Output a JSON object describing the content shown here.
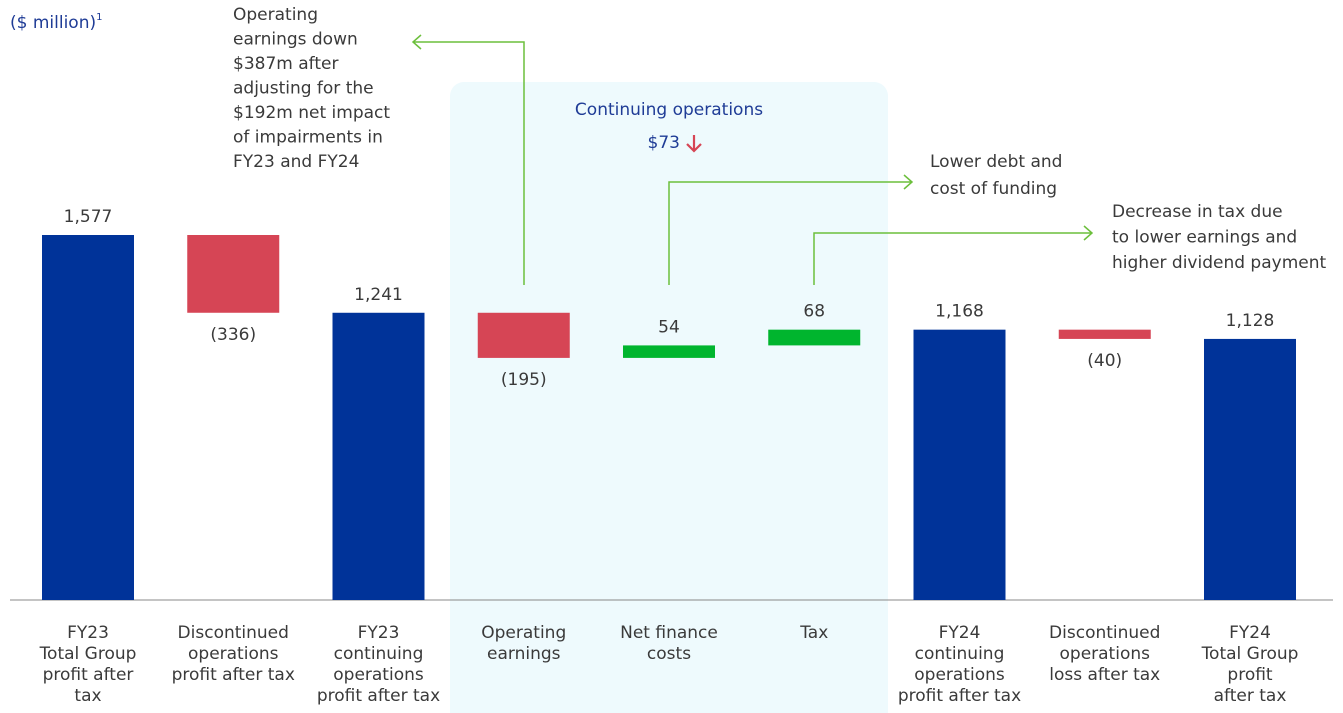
{
  "chart_data": {
    "type": "waterfall",
    "unit_label": "($ million)",
    "unit_footnote": "1",
    "categories": [
      [
        "FY23",
        "Total Group",
        "profit after",
        "tax"
      ],
      [
        "Discontinued",
        "operations",
        "profit after tax"
      ],
      [
        "FY23",
        "continuing",
        "operations",
        "profit after tax"
      ],
      [
        "Operating",
        "earnings"
      ],
      [
        "Net finance",
        "costs"
      ],
      [
        "Tax"
      ],
      [
        "FY24",
        "continuing",
        "operations",
        "profit after tax"
      ],
      [
        "Discontinued",
        "operations",
        "loss after tax"
      ],
      [
        "FY24",
        "Total Group",
        "profit",
        "after tax"
      ]
    ],
    "values": [
      1577,
      -336,
      1241,
      -195,
      54,
      68,
      1168,
      -40,
      1128
    ],
    "value_labels": [
      "1,577",
      "(336)",
      "1,241",
      "(195)",
      "54",
      "68",
      "1,168",
      "(40)",
      "1,128"
    ],
    "measures": [
      "total",
      "relative",
      "total",
      "relative",
      "relative",
      "relative",
      "total",
      "relative",
      "total"
    ],
    "colors": {
      "total": "#003399",
      "decrease": "#d64555",
      "increase": "#00b52e"
    },
    "group_box": {
      "title": "Continuing operations",
      "value_label": "$73"
    },
    "annotations": [
      [
        "Operating",
        "earnings down",
        "$387m after",
        "adjusting for the",
        "$192m net impact",
        "of impairments in",
        "FY23 and FY24"
      ],
      [
        "Lower debt and",
        "cost of funding"
      ],
      [
        "Decrease in tax due",
        "to lower earnings and",
        "higher dividend payment"
      ]
    ]
  }
}
